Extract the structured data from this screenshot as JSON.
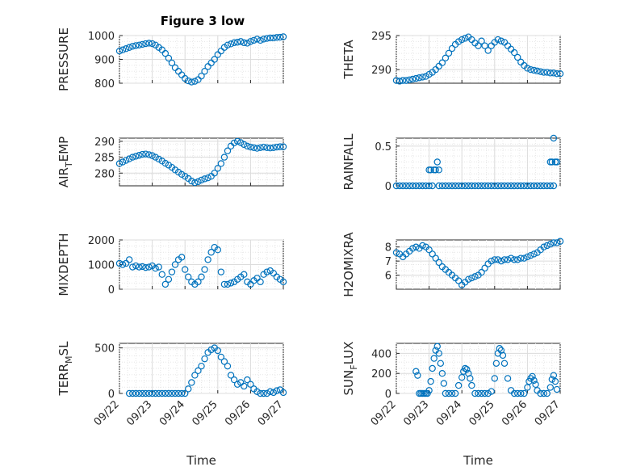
{
  "figure": {
    "title": "Figure 3 low"
  },
  "colors": {
    "marker": "#0072bd",
    "axis": "#262626",
    "grid": "#dcdcdc"
  },
  "chart_data": [
    {
      "id": "pressure",
      "type": "scatter",
      "title": "Figure 3 low",
      "ylabel": "PRESSURE",
      "ylim": [
        800,
        1000
      ],
      "yticks": [
        "800",
        "900",
        "1000"
      ],
      "xlabel": "",
      "xlim": [
        0,
        5
      ],
      "xticks": [],
      "x": [
        0,
        0.1,
        0.2,
        0.3,
        0.4,
        0.5,
        0.6,
        0.7,
        0.8,
        0.9,
        1.0,
        1.1,
        1.2,
        1.3,
        1.4,
        1.5,
        1.6,
        1.7,
        1.8,
        1.9,
        2.0,
        2.1,
        2.2,
        2.3,
        2.4,
        2.5,
        2.6,
        2.7,
        2.8,
        2.9,
        3.0,
        3.1,
        3.2,
        3.3,
        3.4,
        3.5,
        3.6,
        3.7,
        3.8,
        3.9,
        4.0,
        4.1,
        4.2,
        4.3,
        4.4,
        4.5,
        4.6,
        4.7,
        4.8,
        4.9,
        5.0
      ],
      "y": [
        935,
        940,
        945,
        950,
        955,
        958,
        960,
        963,
        966,
        968,
        966,
        960,
        950,
        940,
        925,
        905,
        885,
        865,
        850,
        835,
        820,
        810,
        805,
        808,
        815,
        830,
        850,
        870,
        885,
        900,
        920,
        935,
        950,
        960,
        965,
        970,
        972,
        975,
        970,
        968,
        975,
        980,
        985,
        980,
        985,
        988,
        990,
        990,
        992,
        993,
        995
      ]
    },
    {
      "id": "theta",
      "type": "scatter",
      "ylabel": "THETA",
      "ylim": [
        288,
        295
      ],
      "yticks": [
        "290",
        "295"
      ],
      "xlabel": "",
      "xlim": [
        0,
        5
      ],
      "xticks": [],
      "x": [
        0,
        0.1,
        0.2,
        0.3,
        0.4,
        0.5,
        0.6,
        0.7,
        0.8,
        0.9,
        1.0,
        1.1,
        1.2,
        1.3,
        1.4,
        1.5,
        1.6,
        1.7,
        1.8,
        1.9,
        2.0,
        2.1,
        2.2,
        2.3,
        2.4,
        2.5,
        2.6,
        2.7,
        2.8,
        2.9,
        3.0,
        3.1,
        3.2,
        3.3,
        3.4,
        3.5,
        3.6,
        3.7,
        3.8,
        3.9,
        4.0,
        4.1,
        4.2,
        4.3,
        4.4,
        4.5,
        4.6,
        4.7,
        4.8,
        4.9,
        5.0
      ],
      "y": [
        288.4,
        288.3,
        288.4,
        288.4,
        288.5,
        288.6,
        288.7,
        288.8,
        288.9,
        289.0,
        289.3,
        289.6,
        290.0,
        290.5,
        291.0,
        291.7,
        292.4,
        293.1,
        293.7,
        294.1,
        294.4,
        294.6,
        294.8,
        294.4,
        293.9,
        293.5,
        294.2,
        293.5,
        292.8,
        293.5,
        294.0,
        294.4,
        294.2,
        294.0,
        293.5,
        293.0,
        292.5,
        291.8,
        291.1,
        290.6,
        290.2,
        290.0,
        289.9,
        289.8,
        289.7,
        289.6,
        289.6,
        289.5,
        289.5,
        289.4,
        289.4
      ]
    },
    {
      "id": "air_temp",
      "type": "scatter",
      "ylabel": "AIR",
      "ylabel_sub": "T",
      "ylabel_tail": "EMP",
      "ylim": [
        276,
        291
      ],
      "yticks": [
        "280",
        "285",
        "290"
      ],
      "xlabel": "",
      "xlim": [
        0,
        5
      ],
      "xticks": [],
      "x": [
        0,
        0.1,
        0.2,
        0.3,
        0.4,
        0.5,
        0.6,
        0.7,
        0.8,
        0.9,
        1.0,
        1.1,
        1.2,
        1.3,
        1.4,
        1.5,
        1.6,
        1.7,
        1.8,
        1.9,
        2.0,
        2.1,
        2.2,
        2.3,
        2.4,
        2.5,
        2.6,
        2.7,
        2.8,
        2.9,
        3.0,
        3.1,
        3.2,
        3.3,
        3.4,
        3.5,
        3.6,
        3.7,
        3.8,
        3.9,
        4.0,
        4.1,
        4.2,
        4.3,
        4.4,
        4.5,
        4.6,
        4.7,
        4.8,
        4.9,
        5.0
      ],
      "y": [
        283.0,
        283.5,
        284.0,
        284.5,
        285.0,
        285.3,
        285.6,
        285.9,
        286.0,
        285.8,
        285.5,
        285.0,
        284.4,
        283.8,
        283.1,
        282.5,
        281.8,
        281.0,
        280.3,
        279.6,
        279.0,
        278.3,
        277.5,
        277.0,
        277.3,
        277.8,
        278.2,
        278.5,
        279.0,
        280.0,
        281.5,
        283.0,
        285.0,
        287.0,
        288.5,
        289.5,
        290.0,
        289.6,
        289.0,
        288.5,
        288.2,
        288.0,
        287.8,
        288.0,
        288.2,
        288.0,
        287.9,
        288.0,
        288.2,
        288.3,
        288.3
      ]
    },
    {
      "id": "rainfall",
      "type": "scatter",
      "ylabel": "RAINFALL",
      "ylim": [
        0,
        0.6
      ],
      "yticks": [
        "0",
        "0.5"
      ],
      "xlabel": "",
      "xlim": [
        0,
        5
      ],
      "xticks": [],
      "x": [
        0,
        0.1,
        0.2,
        0.3,
        0.4,
        0.5,
        0.6,
        0.7,
        0.8,
        0.9,
        1.0,
        1.0,
        1.05,
        1.1,
        1.15,
        1.2,
        1.25,
        1.3,
        1.3,
        1.4,
        1.5,
        1.6,
        1.7,
        1.8,
        1.9,
        2.0,
        2.1,
        2.2,
        2.3,
        2.4,
        2.5,
        2.6,
        2.7,
        2.8,
        2.9,
        3.0,
        3.1,
        3.2,
        3.3,
        3.4,
        3.5,
        3.6,
        3.7,
        3.8,
        3.9,
        4.0,
        4.1,
        4.2,
        4.3,
        4.4,
        4.5,
        4.6,
        4.7,
        4.7,
        4.75,
        4.8,
        4.85,
        4.9,
        4.8
      ],
      "y": [
        0,
        0,
        0,
        0,
        0,
        0,
        0,
        0,
        0,
        0,
        0,
        0.2,
        0.2,
        0,
        0.2,
        0.2,
        0.3,
        0.2,
        0,
        0,
        0,
        0,
        0,
        0,
        0,
        0,
        0,
        0,
        0,
        0,
        0,
        0,
        0,
        0,
        0,
        0,
        0,
        0,
        0,
        0,
        0,
        0,
        0,
        0,
        0,
        0,
        0,
        0,
        0,
        0,
        0,
        0,
        0,
        0.3,
        0.3,
        0.6,
        0.3,
        0.3,
        0
      ]
    },
    {
      "id": "mixdepth",
      "type": "scatter",
      "ylabel": "MIXDEPTH",
      "ylim": [
        0,
        2000
      ],
      "yticks": [
        "0",
        "1000",
        "2000"
      ],
      "xlabel": "",
      "xlim": [
        0,
        5
      ],
      "xticks": [],
      "x": [
        0,
        0.1,
        0.2,
        0.3,
        0.4,
        0.5,
        0.6,
        0.7,
        0.8,
        0.9,
        1.0,
        1.1,
        1.2,
        1.3,
        1.4,
        1.5,
        1.6,
        1.7,
        1.8,
        1.9,
        2.0,
        2.1,
        2.2,
        2.3,
        2.4,
        2.5,
        2.6,
        2.7,
        2.8,
        2.9,
        3.0,
        3.1,
        3.2,
        3.3,
        3.4,
        3.5,
        3.6,
        3.7,
        3.8,
        3.9,
        4.0,
        4.1,
        4.2,
        4.3,
        4.4,
        4.5,
        4.6,
        4.7,
        4.8,
        4.9,
        5.0
      ],
      "y": [
        1050,
        1000,
        1050,
        1200,
        900,
        950,
        900,
        920,
        880,
        900,
        950,
        850,
        900,
        600,
        200,
        400,
        700,
        1000,
        1200,
        1300,
        800,
        500,
        300,
        200,
        300,
        500,
        800,
        1200,
        1500,
        1700,
        1600,
        700,
        200,
        200,
        250,
        300,
        400,
        500,
        600,
        300,
        200,
        350,
        450,
        300,
        600,
        700,
        750,
        650,
        500,
        400,
        300
      ]
    },
    {
      "id": "h2omixra",
      "type": "scatter",
      "ylabel": "H2OMIXRA",
      "ylim": [
        5,
        8.5
      ],
      "yticks": [
        "6",
        "7",
        "8"
      ],
      "xlabel": "",
      "xlim": [
        0,
        5
      ],
      "xticks": [],
      "x": [
        0,
        0.1,
        0.2,
        0.3,
        0.4,
        0.5,
        0.6,
        0.7,
        0.8,
        0.9,
        1.0,
        1.1,
        1.2,
        1.3,
        1.4,
        1.5,
        1.6,
        1.7,
        1.8,
        1.9,
        2.0,
        2.1,
        2.2,
        2.3,
        2.4,
        2.5,
        2.6,
        2.7,
        2.8,
        2.9,
        3.0,
        3.1,
        3.2,
        3.3,
        3.4,
        3.5,
        3.6,
        3.7,
        3.8,
        3.9,
        4.0,
        4.1,
        4.2,
        4.3,
        4.4,
        4.5,
        4.6,
        4.7,
        4.8,
        4.9,
        5.0
      ],
      "y": [
        7.6,
        7.5,
        7.3,
        7.5,
        7.7,
        7.9,
        8.0,
        7.9,
        8.1,
        8.0,
        7.8,
        7.5,
        7.2,
        6.9,
        6.6,
        6.4,
        6.2,
        6.0,
        5.8,
        5.6,
        5.3,
        5.5,
        5.7,
        5.8,
        5.9,
        6.0,
        6.2,
        6.5,
        6.8,
        7.0,
        7.1,
        7.1,
        7.0,
        7.1,
        7.1,
        7.2,
        7.1,
        7.1,
        7.2,
        7.2,
        7.3,
        7.4,
        7.5,
        7.6,
        7.8,
        8.0,
        8.1,
        8.2,
        8.3,
        8.3,
        8.4
      ]
    },
    {
      "id": "terr_msl",
      "type": "scatter",
      "ylabel": "TERR",
      "ylabel_sub": "M",
      "ylabel_tail": "SL",
      "ylim": [
        0,
        550
      ],
      "yticks": [
        "0",
        "500"
      ],
      "xlabel": "Time",
      "xlim": [
        0,
        5
      ],
      "xticks": [
        "09/22",
        "09/23",
        "09/24",
        "09/25",
        "09/26",
        "09/27"
      ],
      "x": [
        0.3,
        0.4,
        0.5,
        0.6,
        0.7,
        0.8,
        0.9,
        1.0,
        1.1,
        1.2,
        1.3,
        1.4,
        1.5,
        1.6,
        1.7,
        1.8,
        1.9,
        2.0,
        2.1,
        2.2,
        2.3,
        2.4,
        2.5,
        2.6,
        2.7,
        2.8,
        2.9,
        3.0,
        3.1,
        3.2,
        3.3,
        3.4,
        3.5,
        3.6,
        3.7,
        3.8,
        3.9,
        4.0,
        4.1,
        4.2,
        4.3,
        4.4,
        4.5,
        4.6,
        4.7,
        4.8,
        4.9,
        5.0
      ],
      "y": [
        0,
        0,
        0,
        0,
        0,
        0,
        0,
        0,
        0,
        0,
        0,
        0,
        0,
        0,
        0,
        0,
        0,
        0,
        50,
        120,
        200,
        250,
        300,
        380,
        450,
        480,
        500,
        470,
        400,
        350,
        300,
        200,
        150,
        100,
        120,
        80,
        150,
        100,
        50,
        20,
        0,
        0,
        0,
        20,
        10,
        30,
        40,
        10
      ]
    },
    {
      "id": "sun_flux",
      "type": "scatter",
      "ylabel": "SUN",
      "ylabel_sub": "F",
      "ylabel_tail": "LUX",
      "ylim": [
        0,
        500
      ],
      "yticks": [
        "0",
        "200",
        "400"
      ],
      "xlabel": "Time",
      "xlim": [
        0,
        5
      ],
      "xticks": [
        "09/22",
        "09/23",
        "09/24",
        "09/25",
        "09/26",
        "09/27"
      ],
      "x": [
        0.6,
        0.65,
        0.7,
        0.75,
        0.8,
        0.85,
        0.9,
        0.95,
        1.0,
        1.05,
        1.1,
        1.15,
        1.2,
        1.25,
        1.3,
        1.35,
        1.4,
        1.45,
        1.5,
        1.6,
        1.7,
        1.8,
        1.9,
        2.0,
        2.05,
        2.1,
        2.15,
        2.2,
        2.25,
        2.3,
        2.4,
        2.5,
        2.6,
        2.7,
        2.8,
        2.9,
        3.0,
        3.05,
        3.1,
        3.15,
        3.2,
        3.25,
        3.3,
        3.4,
        3.5,
        3.6,
        3.7,
        3.8,
        3.9,
        4.0,
        4.05,
        4.1,
        4.15,
        4.2,
        4.25,
        4.3,
        4.4,
        4.5,
        4.6,
        4.7,
        4.75,
        4.8,
        4.85,
        4.9
      ],
      "y": [
        220,
        180,
        0,
        0,
        0,
        0,
        0,
        0,
        30,
        120,
        250,
        350,
        430,
        470,
        400,
        300,
        200,
        100,
        0,
        0,
        0,
        0,
        80,
        160,
        220,
        250,
        240,
        200,
        150,
        80,
        0,
        0,
        0,
        0,
        0,
        20,
        150,
        300,
        400,
        450,
        430,
        380,
        300,
        150,
        30,
        0,
        0,
        0,
        0,
        60,
        120,
        150,
        170,
        130,
        90,
        30,
        0,
        0,
        0,
        60,
        140,
        180,
        120,
        40
      ]
    }
  ]
}
